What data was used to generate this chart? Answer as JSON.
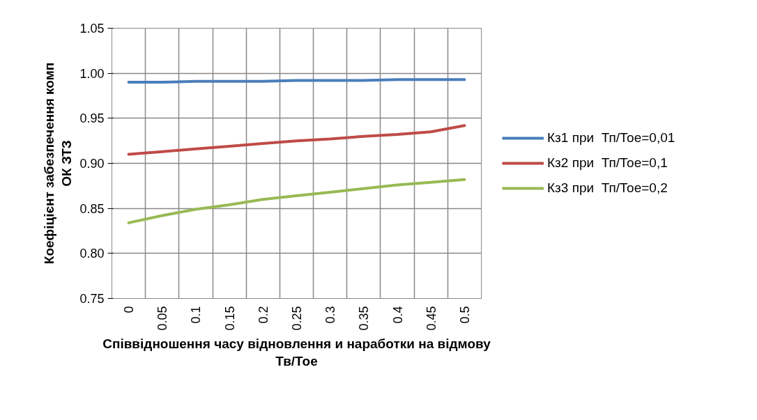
{
  "chart_data": {
    "type": "line",
    "xlabel": "Співвідношення часу відновлення и наработки на відмову\nТв/Тое",
    "ylabel": "Коефіцієнт забезпечення комп\nОК ЗТЗ",
    "categories": [
      "0",
      "0.05",
      "0.1",
      "0.15",
      "0.2",
      "0.25",
      "0.3",
      "0.35",
      "0.4",
      "0.45",
      "0.5"
    ],
    "series": [
      {
        "name": "Кз1 при  Тп/Тое=0,01",
        "color": "#4a7ebb",
        "values": [
          0.99,
          0.99,
          0.991,
          0.991,
          0.991,
          0.992,
          0.992,
          0.992,
          0.993,
          0.993,
          0.993
        ]
      },
      {
        "name": "Кз2 при  Тп/Тое=0,1",
        "color": "#be4b48",
        "values": [
          0.91,
          0.913,
          0.916,
          0.919,
          0.922,
          0.925,
          0.927,
          0.93,
          0.932,
          0.935,
          0.942
        ]
      },
      {
        "name": "Кз3 при  Тп/Тое=0,2",
        "color": "#98b954",
        "values": [
          0.834,
          0.842,
          0.849,
          0.854,
          0.86,
          0.864,
          0.868,
          0.872,
          0.876,
          0.879,
          0.882
        ]
      }
    ],
    "ylim": [
      0.75,
      1.05
    ],
    "yticks": [
      {
        "value": 0.75,
        "label": "0.75"
      },
      {
        "value": 0.8,
        "label": "0.80"
      },
      {
        "value": 0.85,
        "label": "0.85"
      },
      {
        "value": 0.9,
        "label": "0.90"
      },
      {
        "value": 0.95,
        "label": "0.95"
      },
      {
        "value": 1.0,
        "label": "1.00"
      },
      {
        "value": 1.05,
        "label": "1.05"
      }
    ],
    "grid": true,
    "legend": "right",
    "marker": "none",
    "line_style": "solid"
  }
}
